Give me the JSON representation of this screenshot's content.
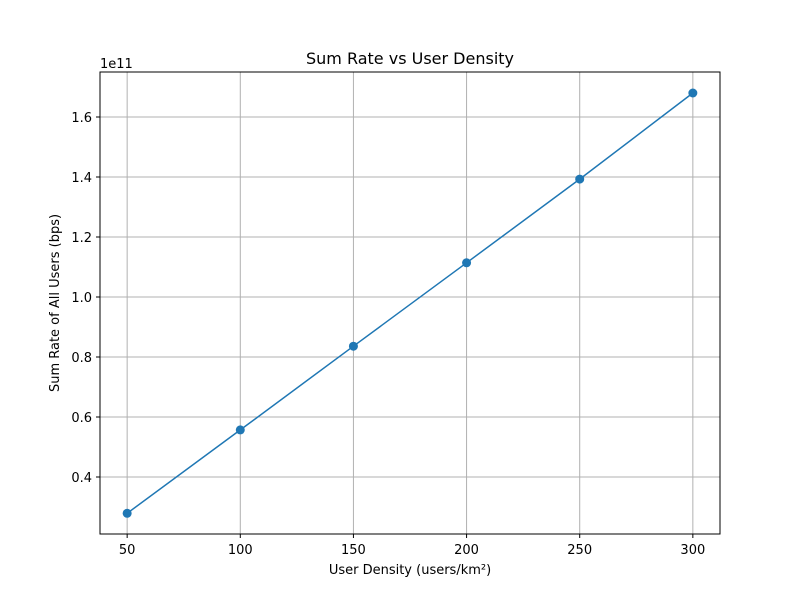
{
  "chart_data": {
    "type": "line",
    "title": "Sum Rate vs User Density",
    "xlabel": "User Density (users/km²)",
    "ylabel": "Sum Rate of All Users (bps)",
    "y_offset_label": "1e11",
    "x": [
      50,
      100,
      150,
      200,
      250,
      300
    ],
    "series": [
      {
        "values": [
          0.279,
          0.557,
          0.836,
          1.114,
          1.393,
          1.68
        ]
      }
    ],
    "xlim": [
      38,
      312
    ],
    "ylim": [
      0.21,
      1.75
    ],
    "xticks": [
      50,
      100,
      150,
      200,
      250,
      300
    ],
    "xtick_labels": [
      "50",
      "100",
      "150",
      "200",
      "250",
      "300"
    ],
    "yticks": [
      0.4,
      0.6,
      0.8,
      1.0,
      1.2,
      1.4,
      1.6
    ],
    "ytick_labels": [
      "0.4",
      "0.6",
      "0.8",
      "1.0",
      "1.2",
      "1.4",
      "1.6"
    ],
    "grid": true,
    "colors": {
      "series": "#1f77b4",
      "grid": "#b0b0b0",
      "axis": "#000000"
    }
  }
}
